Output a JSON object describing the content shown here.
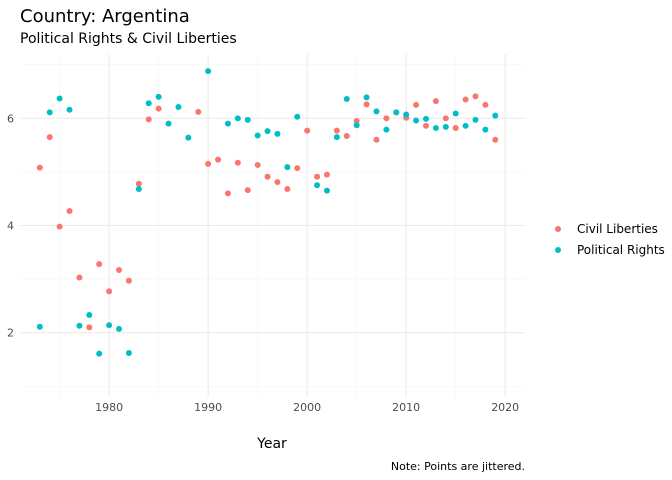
{
  "chart_data": {
    "type": "scatter",
    "title": "Country: Argentina",
    "subtitle": "Political Rights & Civil Liberties",
    "xlabel": "Year",
    "ylabel": "",
    "caption": "Note: Points are jittered.",
    "xlim": [
      1971,
      2022
    ],
    "ylim": [
      0.8,
      7.2
    ],
    "x_ticks": [
      1980,
      1990,
      2000,
      2010,
      2020
    ],
    "y_ticks": [
      2,
      4,
      6
    ],
    "grid": true,
    "legend_position": "right",
    "series": [
      {
        "name": "Civil Liberties",
        "color": "#F8766D",
        "points": [
          [
            1973,
            5.08
          ],
          [
            1974,
            5.65
          ],
          [
            1975,
            3.98
          ],
          [
            1976,
            4.27
          ],
          [
            1977,
            3.03
          ],
          [
            1978,
            2.1
          ],
          [
            1979,
            3.28
          ],
          [
            1980,
            2.77
          ],
          [
            1981,
            3.17
          ],
          [
            1982,
            2.97
          ],
          [
            1983,
            4.78
          ],
          [
            1984,
            5.98
          ],
          [
            1985,
            6.18
          ],
          [
            1989,
            6.12
          ],
          [
            1990,
            5.15
          ],
          [
            1991,
            5.23
          ],
          [
            1992,
            4.6
          ],
          [
            1993,
            5.17
          ],
          [
            1994,
            4.66
          ],
          [
            1995,
            5.13
          ],
          [
            1996,
            4.91
          ],
          [
            1997,
            4.81
          ],
          [
            1998,
            4.68
          ],
          [
            1999,
            5.07
          ],
          [
            2000,
            5.77
          ],
          [
            2001,
            4.91
          ],
          [
            2002,
            4.95
          ],
          [
            2003,
            5.77
          ],
          [
            2004,
            5.67
          ],
          [
            2005,
            5.95
          ],
          [
            2006,
            6.26
          ],
          [
            2007,
            5.6
          ],
          [
            2008,
            6.0
          ],
          [
            2009,
            6.11
          ],
          [
            2010,
            6.01
          ],
          [
            2011,
            6.25
          ],
          [
            2012,
            5.86
          ],
          [
            2013,
            6.32
          ],
          [
            2014,
            6.0
          ],
          [
            2015,
            5.82
          ],
          [
            2016,
            6.35
          ],
          [
            2017,
            6.41
          ],
          [
            2018,
            6.25
          ],
          [
            2019,
            5.6
          ]
        ]
      },
      {
        "name": "Political Rights",
        "color": "#00BFC4",
        "points": [
          [
            1973,
            2.11
          ],
          [
            1974,
            6.11
          ],
          [
            1975,
            6.37
          ],
          [
            1976,
            6.16
          ],
          [
            1977,
            2.13
          ],
          [
            1978,
            2.33
          ],
          [
            1979,
            1.61
          ],
          [
            1980,
            2.14
          ],
          [
            1981,
            2.07
          ],
          [
            1982,
            1.62
          ],
          [
            1983,
            4.68
          ],
          [
            1984,
            6.28
          ],
          [
            1985,
            6.4
          ],
          [
            1986,
            5.9
          ],
          [
            1987,
            6.21
          ],
          [
            1988,
            5.64
          ],
          [
            1990,
            6.88
          ],
          [
            1992,
            5.9
          ],
          [
            1993,
            6.0
          ],
          [
            1994,
            5.97
          ],
          [
            1995,
            5.68
          ],
          [
            1996,
            5.76
          ],
          [
            1997,
            5.71
          ],
          [
            1998,
            5.09
          ],
          [
            1999,
            6.03
          ],
          [
            2001,
            4.75
          ],
          [
            2002,
            4.65
          ],
          [
            2003,
            5.65
          ],
          [
            2004,
            6.36
          ],
          [
            2005,
            5.87
          ],
          [
            2006,
            6.39
          ],
          [
            2007,
            6.13
          ],
          [
            2008,
            5.79
          ],
          [
            2009,
            6.11
          ],
          [
            2010,
            6.07
          ],
          [
            2011,
            5.96
          ],
          [
            2012,
            5.99
          ],
          [
            2013,
            5.82
          ],
          [
            2014,
            5.84
          ],
          [
            2015,
            6.09
          ],
          [
            2016,
            5.86
          ],
          [
            2017,
            5.97
          ],
          [
            2018,
            5.79
          ],
          [
            2019,
            6.05
          ]
        ]
      }
    ]
  }
}
